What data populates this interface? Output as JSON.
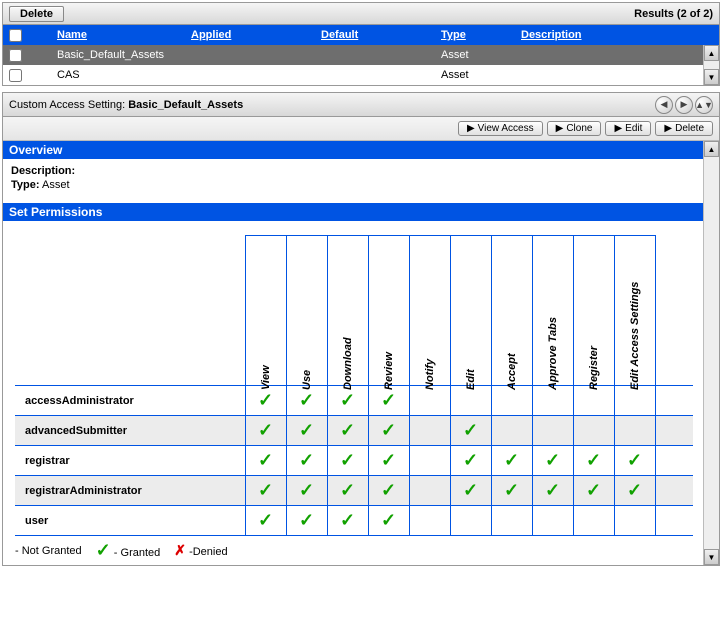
{
  "topBar": {
    "deleteLabel": "Delete",
    "resultsLabel": "Results (2 of 2)"
  },
  "gridHeaders": {
    "name": "Name",
    "applied": "Applied",
    "default": "Default",
    "type": "Type",
    "description": "Description"
  },
  "gridRows": [
    {
      "name": "Basic_Default_Assets",
      "applied": "",
      "default": "",
      "type": "Asset",
      "description": "",
      "selected": true
    },
    {
      "name": "CAS",
      "applied": "",
      "default": "",
      "type": "Asset",
      "description": "",
      "selected": false
    }
  ],
  "detail": {
    "titlePrefix": "Custom Access Setting:",
    "titleName": "Basic_Default_Assets",
    "buttons": {
      "viewAccess": "View Access",
      "clone": "Clone",
      "edit": "Edit",
      "delete": "Delete"
    }
  },
  "overview": {
    "header": "Overview",
    "descriptionLabel": "Description:",
    "descriptionValue": "",
    "typeLabel": "Type:",
    "typeValue": "Asset"
  },
  "permissions": {
    "header": "Set Permissions",
    "columns": [
      "View",
      "Use",
      "Download",
      "Review",
      "Notify",
      "Edit",
      "Accept",
      "Approve Tabs",
      "Register",
      "Edit Access Settings"
    ],
    "roles": [
      {
        "name": "accessAdministrator",
        "grants": [
          true,
          true,
          true,
          true,
          false,
          false,
          false,
          false,
          false,
          false
        ]
      },
      {
        "name": "advancedSubmitter",
        "grants": [
          true,
          true,
          true,
          true,
          false,
          true,
          false,
          false,
          false,
          false
        ]
      },
      {
        "name": "registrar",
        "grants": [
          true,
          true,
          true,
          true,
          false,
          true,
          true,
          true,
          true,
          true
        ]
      },
      {
        "name": "registrarAdministrator",
        "grants": [
          true,
          true,
          true,
          true,
          false,
          true,
          true,
          true,
          true,
          true
        ]
      },
      {
        "name": "user",
        "grants": [
          true,
          true,
          true,
          true,
          false,
          false,
          false,
          false,
          false,
          false
        ]
      }
    ]
  },
  "legend": {
    "notGranted": "- Not Granted",
    "granted": "- Granted",
    "denied": "-Denied"
  },
  "colors": {
    "primary": "#0054e3",
    "granted": "#11a100",
    "denied": "#d00000"
  }
}
